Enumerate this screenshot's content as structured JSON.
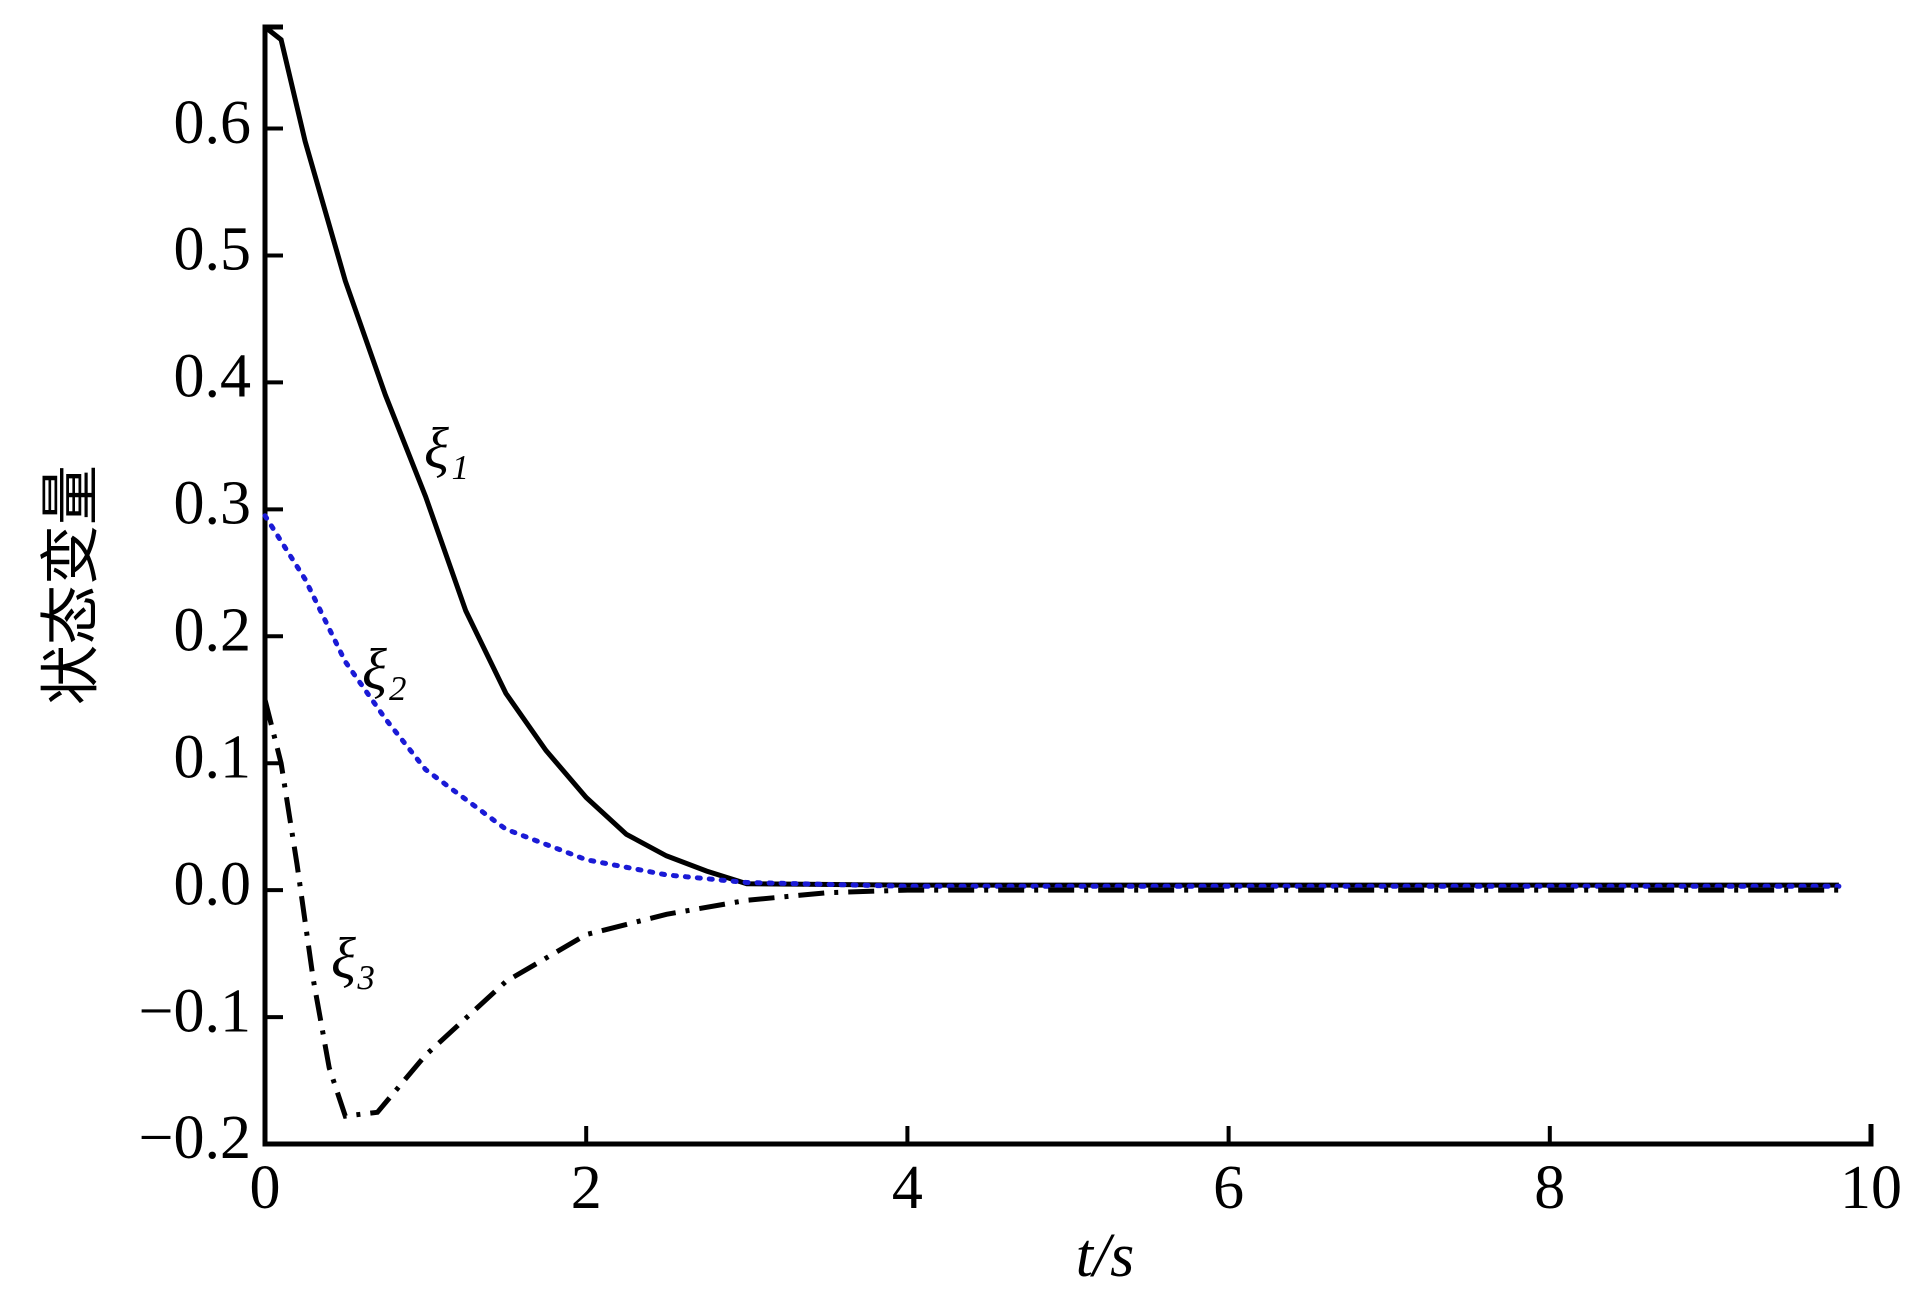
{
  "chart_data": {
    "type": "line",
    "x_label": "t/s",
    "y_label": "状态变量",
    "xlim": [
      0,
      10
    ],
    "xticks": [
      0,
      2,
      4,
      6,
      8,
      10
    ],
    "ylim": [
      -0.2,
      0.68
    ],
    "yticks": [
      {
        "value": -0.2,
        "label": "−0.2"
      },
      {
        "value": -0.1,
        "label": "−0.1"
      },
      {
        "value": 0,
        "label": "0.0"
      },
      0.1,
      0.2,
      0.3,
      0.4,
      0.5,
      0.6
    ],
    "grid": false,
    "series": [
      {
        "name": "ξ₁",
        "color": "#000000",
        "dash": "solid",
        "x": [
          0,
          0.1,
          0.25,
          0.5,
          0.75,
          1,
          1.25,
          1.5,
          1.75,
          2,
          2.25,
          2.5,
          2.75,
          3,
          4,
          6,
          8,
          9.8
        ],
        "values": [
          0.68,
          0.67,
          0.59,
          0.48,
          0.39,
          0.31,
          0.22,
          0.155,
          0.11,
          0.073,
          0.044,
          0.027,
          0.015,
          0.005,
          0.004,
          0.004,
          0.004,
          0.004
        ]
      },
      {
        "name": "ξ₂",
        "color": "#1a1ad6",
        "dash": "dotted",
        "x": [
          0,
          0.25,
          0.5,
          0.75,
          1,
          1.5,
          2,
          2.5,
          3,
          4,
          6,
          8,
          9.8
        ],
        "values": [
          0.295,
          0.245,
          0.18,
          0.135,
          0.095,
          0.048,
          0.024,
          0.012,
          0.006,
          0.003,
          0.003,
          0.003,
          0.003
        ]
      },
      {
        "name": "ξ₃",
        "color": "#000000",
        "dash": "dashdot",
        "x": [
          0,
          0.1,
          0.2,
          0.3,
          0.4,
          0.5,
          0.7,
          1,
          1.5,
          2,
          2.5,
          3,
          3.5,
          4,
          6,
          8,
          9.8
        ],
        "values": [
          0.15,
          0.1,
          0.02,
          -0.07,
          -0.14,
          -0.178,
          -0.175,
          -0.13,
          -0.072,
          -0.035,
          -0.019,
          -0.008,
          -0.002,
          0,
          0,
          0,
          0
        ]
      }
    ]
  }
}
